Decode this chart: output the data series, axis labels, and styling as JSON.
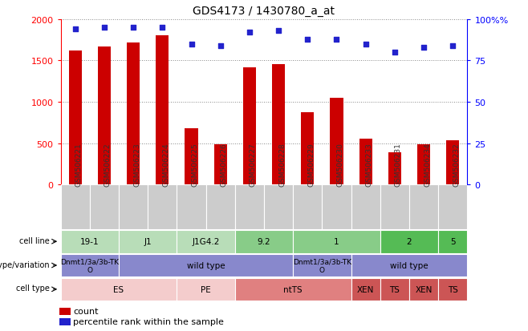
{
  "title": "GDS4173 / 1430780_a_at",
  "samples": [
    "GSM506221",
    "GSM506222",
    "GSM506223",
    "GSM506224",
    "GSM506225",
    "GSM506226",
    "GSM506227",
    "GSM506228",
    "GSM506229",
    "GSM506230",
    "GSM506233",
    "GSM506231",
    "GSM506234",
    "GSM506232"
  ],
  "counts": [
    1620,
    1670,
    1720,
    1800,
    680,
    490,
    1420,
    1460,
    880,
    1050,
    560,
    390,
    490,
    540
  ],
  "percentiles": [
    94,
    95,
    95,
    95,
    85,
    84,
    92,
    93,
    88,
    88,
    85,
    80,
    83,
    84
  ],
  "ylim_left": [
    0,
    2000
  ],
  "ylim_right": [
    0,
    100
  ],
  "yticks_left": [
    0,
    500,
    1000,
    1500,
    2000
  ],
  "yticks_right": [
    0,
    25,
    50,
    75,
    100
  ],
  "bar_color": "#cc0000",
  "dot_color": "#2222cc",
  "cell_line_data": [
    {
      "label": "19-1",
      "start": 0,
      "end": 2,
      "color": "#b8ddb8"
    },
    {
      "label": "J1",
      "start": 2,
      "end": 4,
      "color": "#b8ddb8"
    },
    {
      "label": "J1G4.2",
      "start": 4,
      "end": 6,
      "color": "#b8ddb8"
    },
    {
      "label": "9.2",
      "start": 6,
      "end": 8,
      "color": "#88cc88"
    },
    {
      "label": "1",
      "start": 8,
      "end": 11,
      "color": "#88cc88"
    },
    {
      "label": "2",
      "start": 11,
      "end": 13,
      "color": "#55bb55"
    },
    {
      "label": "5",
      "start": 13,
      "end": 14,
      "color": "#55bb55"
    }
  ],
  "genotype_data": [
    {
      "label": "Dnmt1/3a/3b-TK\nO",
      "start": 0,
      "end": 2,
      "color": "#8888cc"
    },
    {
      "label": "wild type",
      "start": 2,
      "end": 8,
      "color": "#8888cc"
    },
    {
      "label": "Dnmt1/3a/3b-TK\nO",
      "start": 8,
      "end": 10,
      "color": "#8888cc"
    },
    {
      "label": "wild type",
      "start": 10,
      "end": 14,
      "color": "#8888cc"
    }
  ],
  "celltype_data": [
    {
      "label": "ES",
      "start": 0,
      "end": 4,
      "color": "#f4cccc"
    },
    {
      "label": "PE",
      "start": 4,
      "end": 6,
      "color": "#f4cccc"
    },
    {
      "label": "ntTS",
      "start": 6,
      "end": 10,
      "color": "#e08080"
    },
    {
      "label": "XEN",
      "start": 10,
      "end": 11,
      "color": "#cc5555"
    },
    {
      "label": "TS",
      "start": 11,
      "end": 12,
      "color": "#cc5555"
    },
    {
      "label": "XEN",
      "start": 12,
      "end": 13,
      "color": "#cc5555"
    },
    {
      "label": "TS",
      "start": 13,
      "end": 14,
      "color": "#cc5555"
    }
  ],
  "bg_color": "#ffffff",
  "grid_color": "#888888",
  "tick_bg_color": "#cccccc"
}
